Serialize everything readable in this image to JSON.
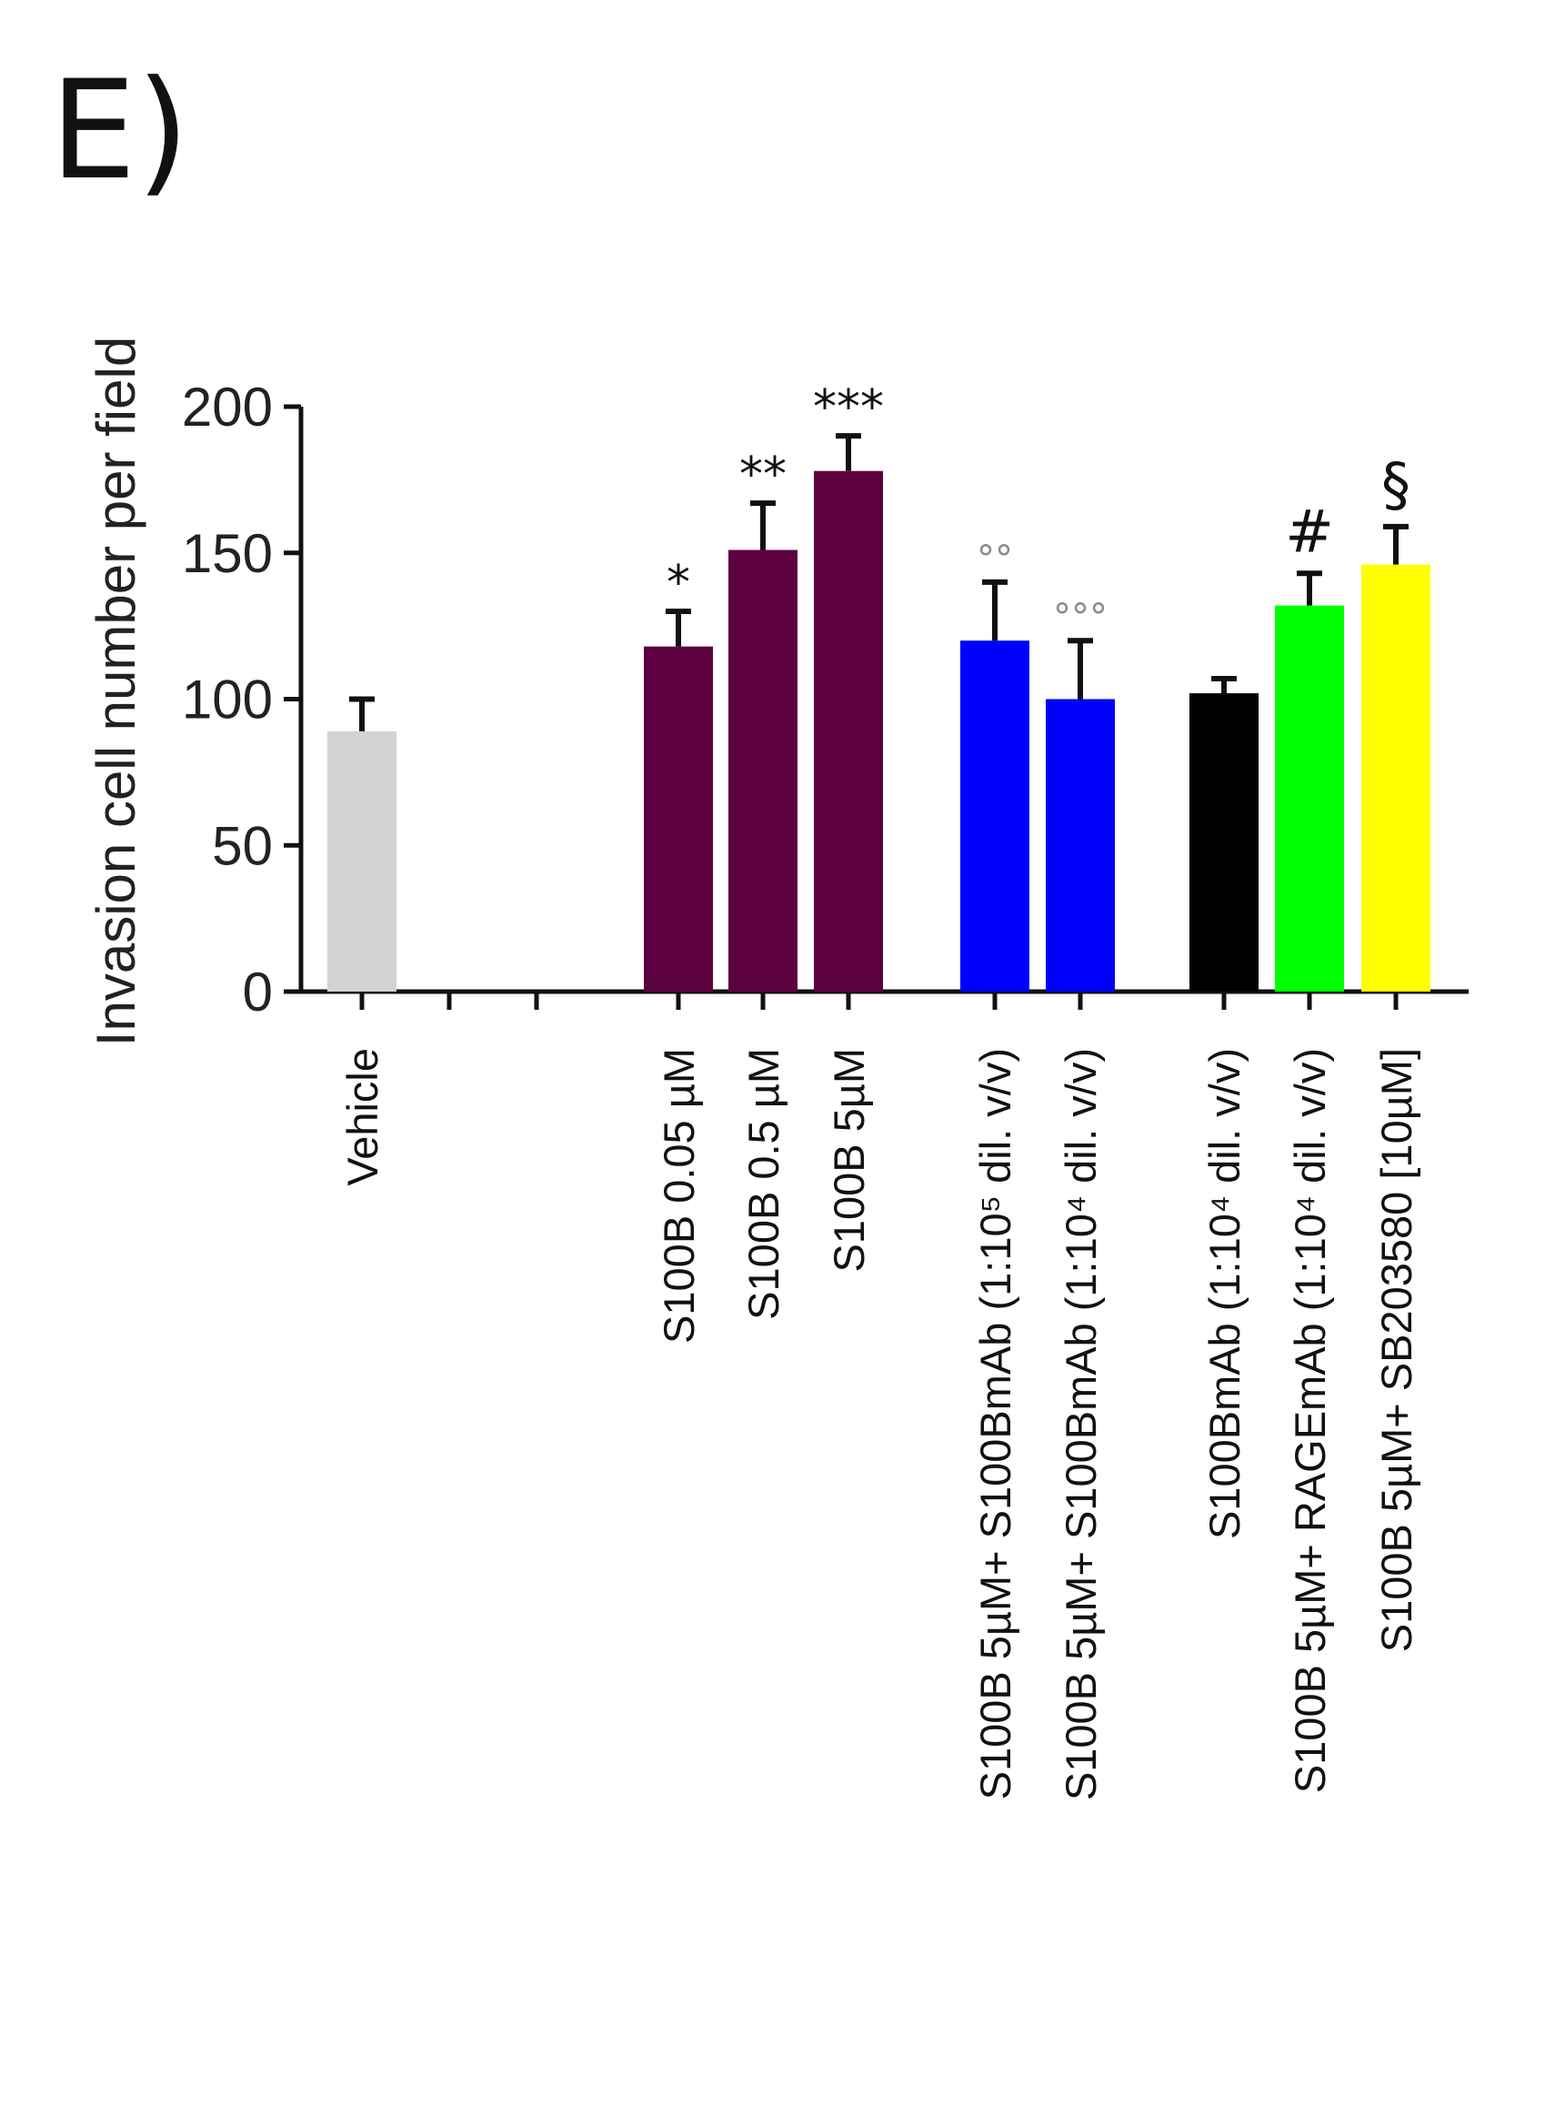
{
  "panel_label": "E)",
  "chart_data": {
    "type": "bar",
    "ylabel": "Invasion cell number per field",
    "ylim": [
      0,
      200
    ],
    "yticks": [
      "0",
      "50",
      "100",
      "150",
      "200"
    ],
    "categories": [
      "Vehicle",
      "",
      "",
      "S100B 0.05 µM",
      "S100B 0.5 µM",
      "S100B 5µM",
      "S100B 5µM+ S100BmAb (1:10⁵ dil. v/v)",
      "S100B 5µM+ S100BmAb (1:10⁴ dil. v/v)",
      "S100BmAb (1:10⁴ dil. v/v)",
      "S100B 5µM+ RAGEmAb (1:10⁴ dil. v/v)",
      "S100B 5µM+ SB203580 [10µM]"
    ],
    "values": [
      89,
      null,
      null,
      118,
      151,
      178,
      120,
      100,
      102,
      132,
      146
    ],
    "errors": [
      11,
      null,
      null,
      12,
      16,
      12,
      20,
      20,
      5,
      11,
      13
    ],
    "colors": [
      "#d3d3d3",
      null,
      null,
      "#5c0040",
      "#5c0040",
      "#5c0040",
      "#0000ff",
      "#0000ff",
      "#000000",
      "#00ff00",
      "#ffff00"
    ],
    "annotations": [
      "",
      "",
      "",
      "*",
      "**",
      "***",
      "°°",
      "°°°",
      "",
      "#",
      "§"
    ],
    "grid": false,
    "legend": "none"
  }
}
